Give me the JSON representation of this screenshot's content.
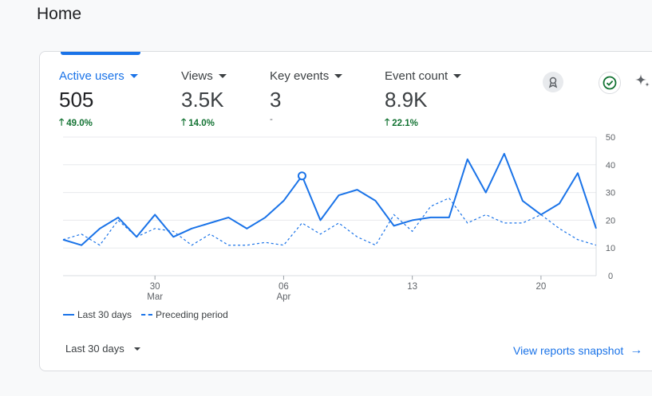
{
  "page": {
    "title": "Home"
  },
  "metrics": [
    {
      "label": "Active users",
      "value": "505",
      "change": "49.0%",
      "direction": "up"
    },
    {
      "label": "Views",
      "value": "3.5K",
      "change": "14.0%",
      "direction": "up"
    },
    {
      "label": "Key events",
      "value": "3",
      "change": "-",
      "direction": "none"
    },
    {
      "label": "Event count",
      "value": "8.9K",
      "change": "22.1%",
      "direction": "up"
    }
  ],
  "icons": {
    "insights": "insights-badge-icon",
    "status": "check-circle-icon",
    "ai": "sparkle-icon"
  },
  "colors": {
    "accent": "#1a73e8",
    "positive": "#137333"
  },
  "chart_data": {
    "type": "line",
    "x_ticks": [
      {
        "label": "30",
        "sublabel": "Mar",
        "index": 5
      },
      {
        "label": "06",
        "sublabel": "Apr",
        "index": 12
      },
      {
        "label": "13",
        "sublabel": "",
        "index": 19
      },
      {
        "label": "20",
        "sublabel": "",
        "index": 26
      }
    ],
    "y_ticks": [
      "0",
      "10",
      "20",
      "30",
      "40",
      "50"
    ],
    "ylim": [
      0,
      50
    ],
    "series": [
      {
        "name": "Last 30 days",
        "style": "solid",
        "values": [
          13,
          11,
          17,
          21,
          14,
          22,
          14,
          17,
          19,
          21,
          17,
          21,
          27,
          36,
          20,
          29,
          31,
          27,
          18,
          20,
          21,
          21,
          42,
          30,
          44,
          27,
          22,
          26,
          37,
          17
        ]
      },
      {
        "name": "Preceding period",
        "style": "dashed",
        "values": [
          13,
          15,
          11,
          20,
          14,
          17,
          16,
          11,
          15,
          11,
          11,
          12,
          11,
          19,
          15,
          19,
          14,
          11,
          22,
          16,
          25,
          28,
          19,
          22,
          19,
          19,
          22,
          17,
          13,
          11
        ]
      }
    ],
    "highlight_index": 13,
    "legend_position": "bottom-left"
  },
  "footer": {
    "date_range": "Last 30 days",
    "snapshot_link": "View reports snapshot"
  }
}
